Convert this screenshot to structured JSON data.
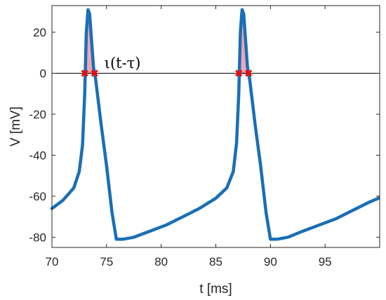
{
  "chart_data": {
    "type": "line",
    "title": "",
    "xlabel": "t [ms]",
    "ylabel": "V [mV]",
    "xlim": [
      70,
      100
    ],
    "ylim": [
      -85,
      33
    ],
    "grid": false,
    "x_ticks": [
      70,
      75,
      80,
      85,
      90,
      95
    ],
    "x_tick_labels": [
      "70",
      "75",
      "80",
      "85",
      "90",
      "95"
    ],
    "y_ticks": [
      20,
      0,
      -20,
      -40,
      -60,
      -80
    ],
    "y_tick_labels": [
      "20",
      "0",
      "-20",
      "-40",
      "-60",
      "-80"
    ],
    "series": [
      {
        "color": "#1a6fb5",
        "x": [
          70.0,
          71.0,
          72.0,
          72.5,
          72.8,
          73.0,
          73.15,
          73.3,
          73.45,
          73.6,
          73.8,
          74.0,
          74.5,
          75.0,
          75.5,
          75.9,
          76.5,
          77.5,
          79.0,
          80.5,
          82.0,
          83.5,
          85.0,
          86.0,
          86.6,
          86.9,
          87.1,
          87.25,
          87.4,
          87.55,
          87.7,
          87.9,
          88.1,
          88.6,
          89.1,
          89.6,
          90.0,
          90.6,
          91.6,
          93.0,
          94.5,
          96.0,
          97.5,
          99.0,
          99.9
        ],
        "y": [
          -66,
          -62,
          -56,
          -48,
          -35,
          -10,
          20,
          31,
          29,
          18,
          3,
          -3,
          -25,
          -45,
          -68,
          -81,
          -81,
          -80,
          -77,
          -74,
          -70,
          -66,
          -61,
          -56,
          -48,
          -34,
          -10,
          20,
          31,
          29,
          18,
          3,
          -3,
          -25,
          -45,
          -68,
          -81,
          -81,
          -80,
          -77,
          -74,
          -71,
          -67,
          -63,
          -61
        ]
      }
    ],
    "baseline": {
      "y": 0,
      "color": "#000000"
    },
    "markers": {
      "color": "#ff0000",
      "symbol": "x",
      "x": [
        73.0,
        73.9,
        87.1,
        88.0
      ],
      "y": [
        0,
        0,
        0,
        0
      ]
    },
    "shaded_regions": [
      {
        "fill": "#f2a5b5",
        "edge": "#d03050",
        "x": [
          73.0,
          73.3,
          73.55,
          73.9
        ],
        "y": [
          0,
          25,
          25,
          0
        ]
      },
      {
        "fill": "#f2a5b5",
        "edge": "#d03050",
        "x": [
          87.1,
          87.4,
          87.65,
          88.0
        ],
        "y": [
          0,
          25,
          25,
          0
        ]
      }
    ],
    "annotations": [
      {
        "text": "ι(t-τ)",
        "x": 74.8,
        "y": 2.5
      }
    ]
  }
}
